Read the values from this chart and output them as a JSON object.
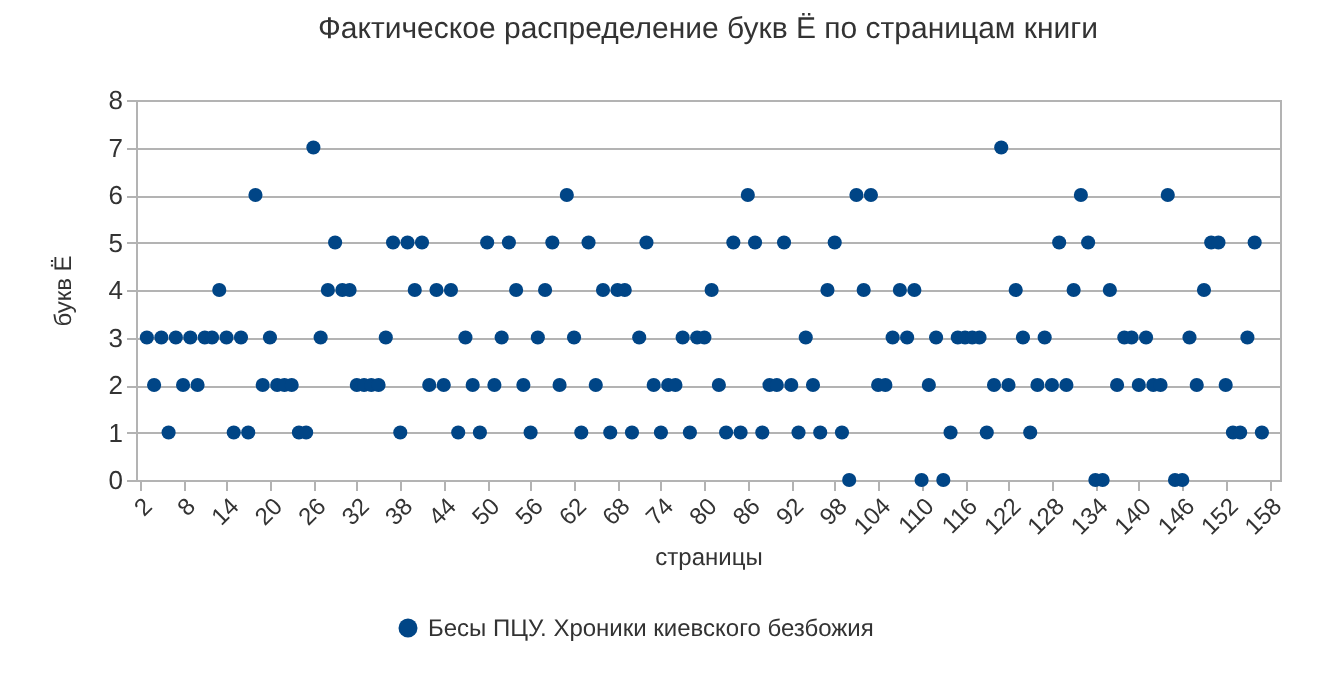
{
  "chart_data": {
    "type": "scatter",
    "title": "Фактическое распределение букв Ё по страницам книги",
    "xlabel": "страницы",
    "ylabel": "букв Ё",
    "xlim": [
      1.5,
      159.5
    ],
    "xticks": [
      2,
      8,
      14,
      20,
      26,
      32,
      38,
      44,
      50,
      56,
      62,
      68,
      74,
      80,
      86,
      92,
      98,
      104,
      110,
      116,
      122,
      128,
      134,
      140,
      146,
      152,
      158
    ],
    "ylim": [
      0,
      8
    ],
    "yticks": [
      0,
      1,
      2,
      3,
      4,
      5,
      6,
      7,
      8
    ],
    "grid": "y",
    "legend": "bottom",
    "marker": "circle",
    "x": [
      3,
      4,
      5,
      6,
      7,
      8,
      9,
      10,
      11,
      12,
      13,
      14,
      15,
      16,
      17,
      18,
      19,
      20,
      21,
      22,
      23,
      24,
      25,
      26,
      27,
      28,
      29,
      30,
      31,
      32,
      33,
      34,
      35,
      36,
      37,
      38,
      39,
      40,
      41,
      42,
      43,
      44,
      45,
      46,
      47,
      48,
      49,
      50,
      51,
      52,
      53,
      54,
      55,
      56,
      57,
      58,
      59,
      60,
      61,
      62,
      63,
      64,
      65,
      66,
      67,
      68,
      69,
      70,
      71,
      72,
      73,
      74,
      75,
      76,
      77,
      78,
      79,
      80,
      81,
      82,
      83,
      84,
      85,
      86,
      87,
      88,
      89,
      90,
      91,
      92,
      93,
      94,
      95,
      96,
      97,
      98,
      99,
      100,
      101,
      102,
      103,
      104,
      105,
      106,
      107,
      108,
      109,
      110,
      111,
      112,
      113,
      114,
      115,
      116,
      117,
      118,
      119,
      120,
      121,
      122,
      123,
      124,
      125,
      126,
      127,
      128,
      129,
      130,
      131,
      132,
      133,
      134,
      135,
      136,
      137,
      138,
      139,
      140,
      141,
      142,
      143,
      144,
      145,
      146,
      147,
      148,
      149,
      150,
      151,
      152,
      153,
      154,
      155,
      156,
      157
    ],
    "series": [
      {
        "name": "Бесы ПЦУ. Хроники киевского безбожия",
        "color": "#004586",
        "values": [
          3,
          2,
          3,
          1,
          3,
          2,
          3,
          2,
          3,
          3,
          4,
          3,
          1,
          3,
          1,
          6,
          2,
          3,
          2,
          2,
          2,
          1,
          1,
          7,
          3,
          4,
          5,
          4,
          4,
          2,
          2,
          2,
          2,
          3,
          5,
          1,
          5,
          4,
          5,
          2,
          4,
          2,
          4,
          1,
          3,
          2,
          1,
          5,
          2,
          3,
          5,
          4,
          2,
          1,
          3,
          4,
          5,
          2,
          6,
          3,
          1,
          5,
          2,
          4,
          1,
          4,
          4,
          1,
          3,
          5,
          2,
          1,
          2,
          2,
          3,
          1,
          3,
          3,
          4,
          2,
          1,
          5,
          1,
          6,
          5,
          1,
          2,
          2,
          5,
          2,
          1,
          3,
          2,
          1,
          4,
          5,
          1,
          0,
          6,
          4,
          6,
          2,
          2,
          3,
          4,
          3,
          4,
          0,
          2,
          3,
          0,
          1,
          3,
          3,
          3,
          3,
          1,
          2,
          7,
          2,
          4,
          3,
          1,
          2,
          3,
          2,
          5,
          2,
          4,
          6,
          5,
          0,
          0,
          4,
          2,
          3,
          3,
          2,
          3,
          2,
          2,
          6,
          0,
          0,
          3,
          2,
          4,
          5,
          5,
          2,
          1,
          1,
          3,
          5,
          1
        ]
      }
    ]
  }
}
